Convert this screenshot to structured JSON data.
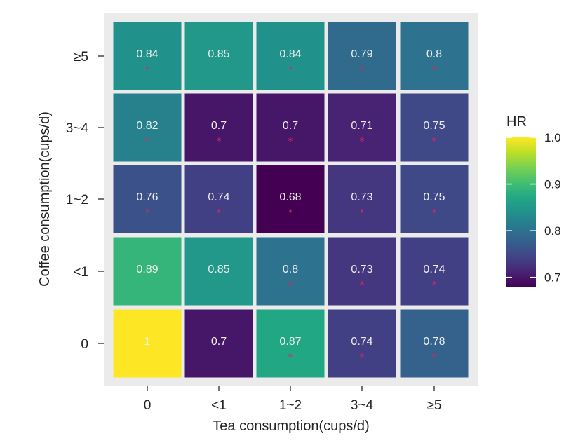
{
  "chart_data": {
    "type": "heatmap",
    "xlabel": "Tea consumption(cups/d)",
    "ylabel": "Coffee consumption(cups/d)",
    "x_categories": [
      "0",
      "<1",
      "1~2",
      "3~4",
      "≥5"
    ],
    "y_categories": [
      "0",
      "<1",
      "1~2",
      "3~4",
      "≥5"
    ],
    "values": [
      {
        "y": "≥5",
        "row": [
          {
            "v": 0.84,
            "sig": true
          },
          {
            "v": 0.85,
            "sig": false
          },
          {
            "v": 0.84,
            "sig": true
          },
          {
            "v": 0.79,
            "sig": true
          },
          {
            "v": 0.8,
            "sig": true
          }
        ]
      },
      {
        "y": "3~4",
        "row": [
          {
            "v": 0.82,
            "sig": true
          },
          {
            "v": 0.7,
            "sig": true
          },
          {
            "v": 0.7,
            "sig": true
          },
          {
            "v": 0.71,
            "sig": true
          },
          {
            "v": 0.75,
            "sig": true
          }
        ]
      },
      {
        "y": "1~2",
        "row": [
          {
            "v": 0.76,
            "sig": true
          },
          {
            "v": 0.74,
            "sig": true
          },
          {
            "v": 0.68,
            "sig": true
          },
          {
            "v": 0.73,
            "sig": true
          },
          {
            "v": 0.75,
            "sig": true
          }
        ]
      },
      {
        "y": "<1",
        "row": [
          {
            "v": 0.89,
            "sig": false
          },
          {
            "v": 0.85,
            "sig": false
          },
          {
            "v": 0.8,
            "sig": true
          },
          {
            "v": 0.73,
            "sig": true
          },
          {
            "v": 0.74,
            "sig": true
          }
        ]
      },
      {
        "y": "0",
        "row": [
          {
            "v": 1,
            "sig": false
          },
          {
            "v": 0.7,
            "sig": false
          },
          {
            "v": 0.87,
            "sig": true
          },
          {
            "v": 0.74,
            "sig": true
          },
          {
            "v": 0.78,
            "sig": true
          }
        ]
      }
    ],
    "significance_marker": "*",
    "legend": {
      "title": "HR",
      "ticks": [
        "1.0",
        "0.9",
        "0.8",
        "0.7"
      ],
      "range": [
        0.68,
        1.0
      ],
      "colormap": "viridis",
      "placement": "right"
    },
    "colors": {
      "panel_background": "#ebebeb",
      "cell_label": "#eeeeee",
      "significance_marker": "#e0245e"
    }
  }
}
